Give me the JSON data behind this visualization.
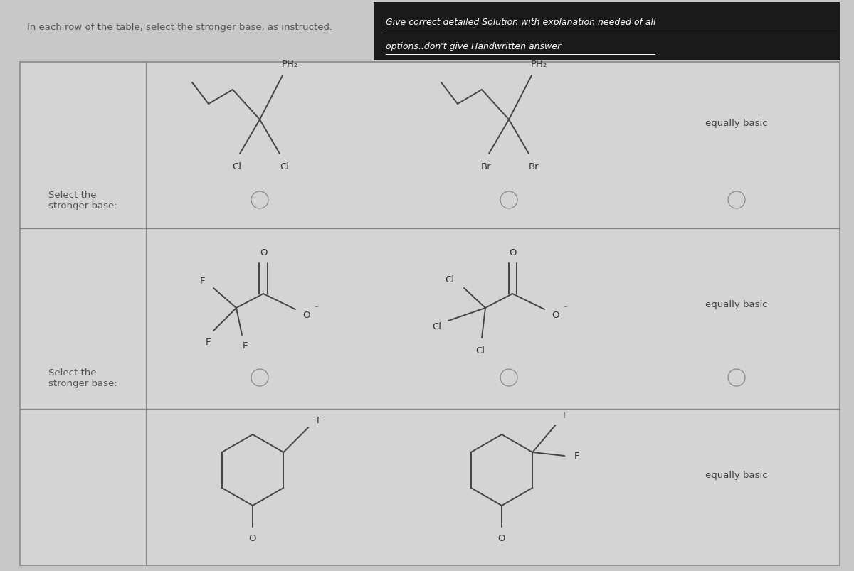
{
  "title_text": "In each row of the table, select the stronger base, as instructed.",
  "banner_text_line1": "Give correct detailed Solution with explanation needed of all",
  "banner_text_line2": "options..don't give Handwritten answer",
  "bg_color": "#c8c8c8",
  "table_bg": "#d4d4d4",
  "banner_bg": "#1a1a1a",
  "banner_text_color": "#ffffff",
  "title_color": "#555555",
  "row1_label": "Select the\nstronger base:",
  "row2_label": "Select the\nstronger base:",
  "equally_basic": "equally basic",
  "mol_color": "#444444",
  "figsize": [
    12,
    8.04
  ],
  "dpi": 100
}
